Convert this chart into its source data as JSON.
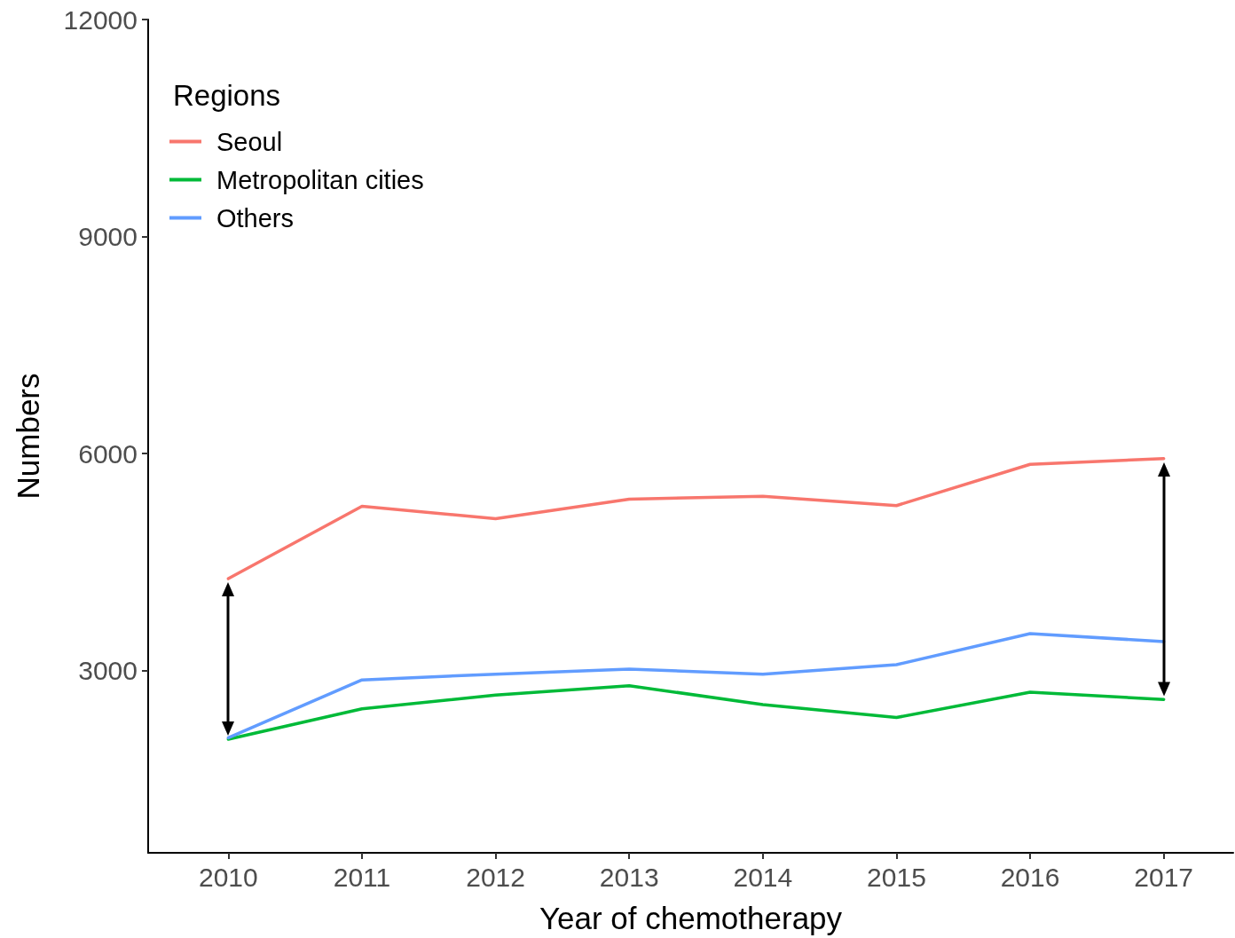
{
  "chart_data": {
    "type": "line",
    "xlabel": "Year of chemotherapy",
    "ylabel": "Numbers",
    "legend_title": "Regions",
    "legend": "top left",
    "x": [
      2010,
      2011,
      2012,
      2013,
      2014,
      2015,
      2016,
      2017
    ],
    "series": [
      {
        "name": "Seoul",
        "color": "#f8766d",
        "values": [
          4270,
          5270,
          5100,
          5370,
          5410,
          5280,
          5850,
          5930
        ]
      },
      {
        "name": "Metropolitan cities",
        "color": "#00ba38",
        "values": [
          2050,
          2470,
          2660,
          2790,
          2530,
          2350,
          2700,
          2600
        ]
      },
      {
        "name": "Others",
        "color": "#619cff",
        "values": [
          2070,
          2870,
          2950,
          3020,
          2950,
          3080,
          3510,
          3400
        ]
      }
    ],
    "xlim": [
      2009.4,
      2017.52
    ],
    "xticks": [
      2010,
      2011,
      2012,
      2013,
      2014,
      2015,
      2016,
      2017
    ],
    "ylim": [
      480,
      12000
    ],
    "yticks": [
      3000,
      6000,
      9000,
      12000
    ],
    "grid": false,
    "marker": "none",
    "line_style": "solid"
  }
}
